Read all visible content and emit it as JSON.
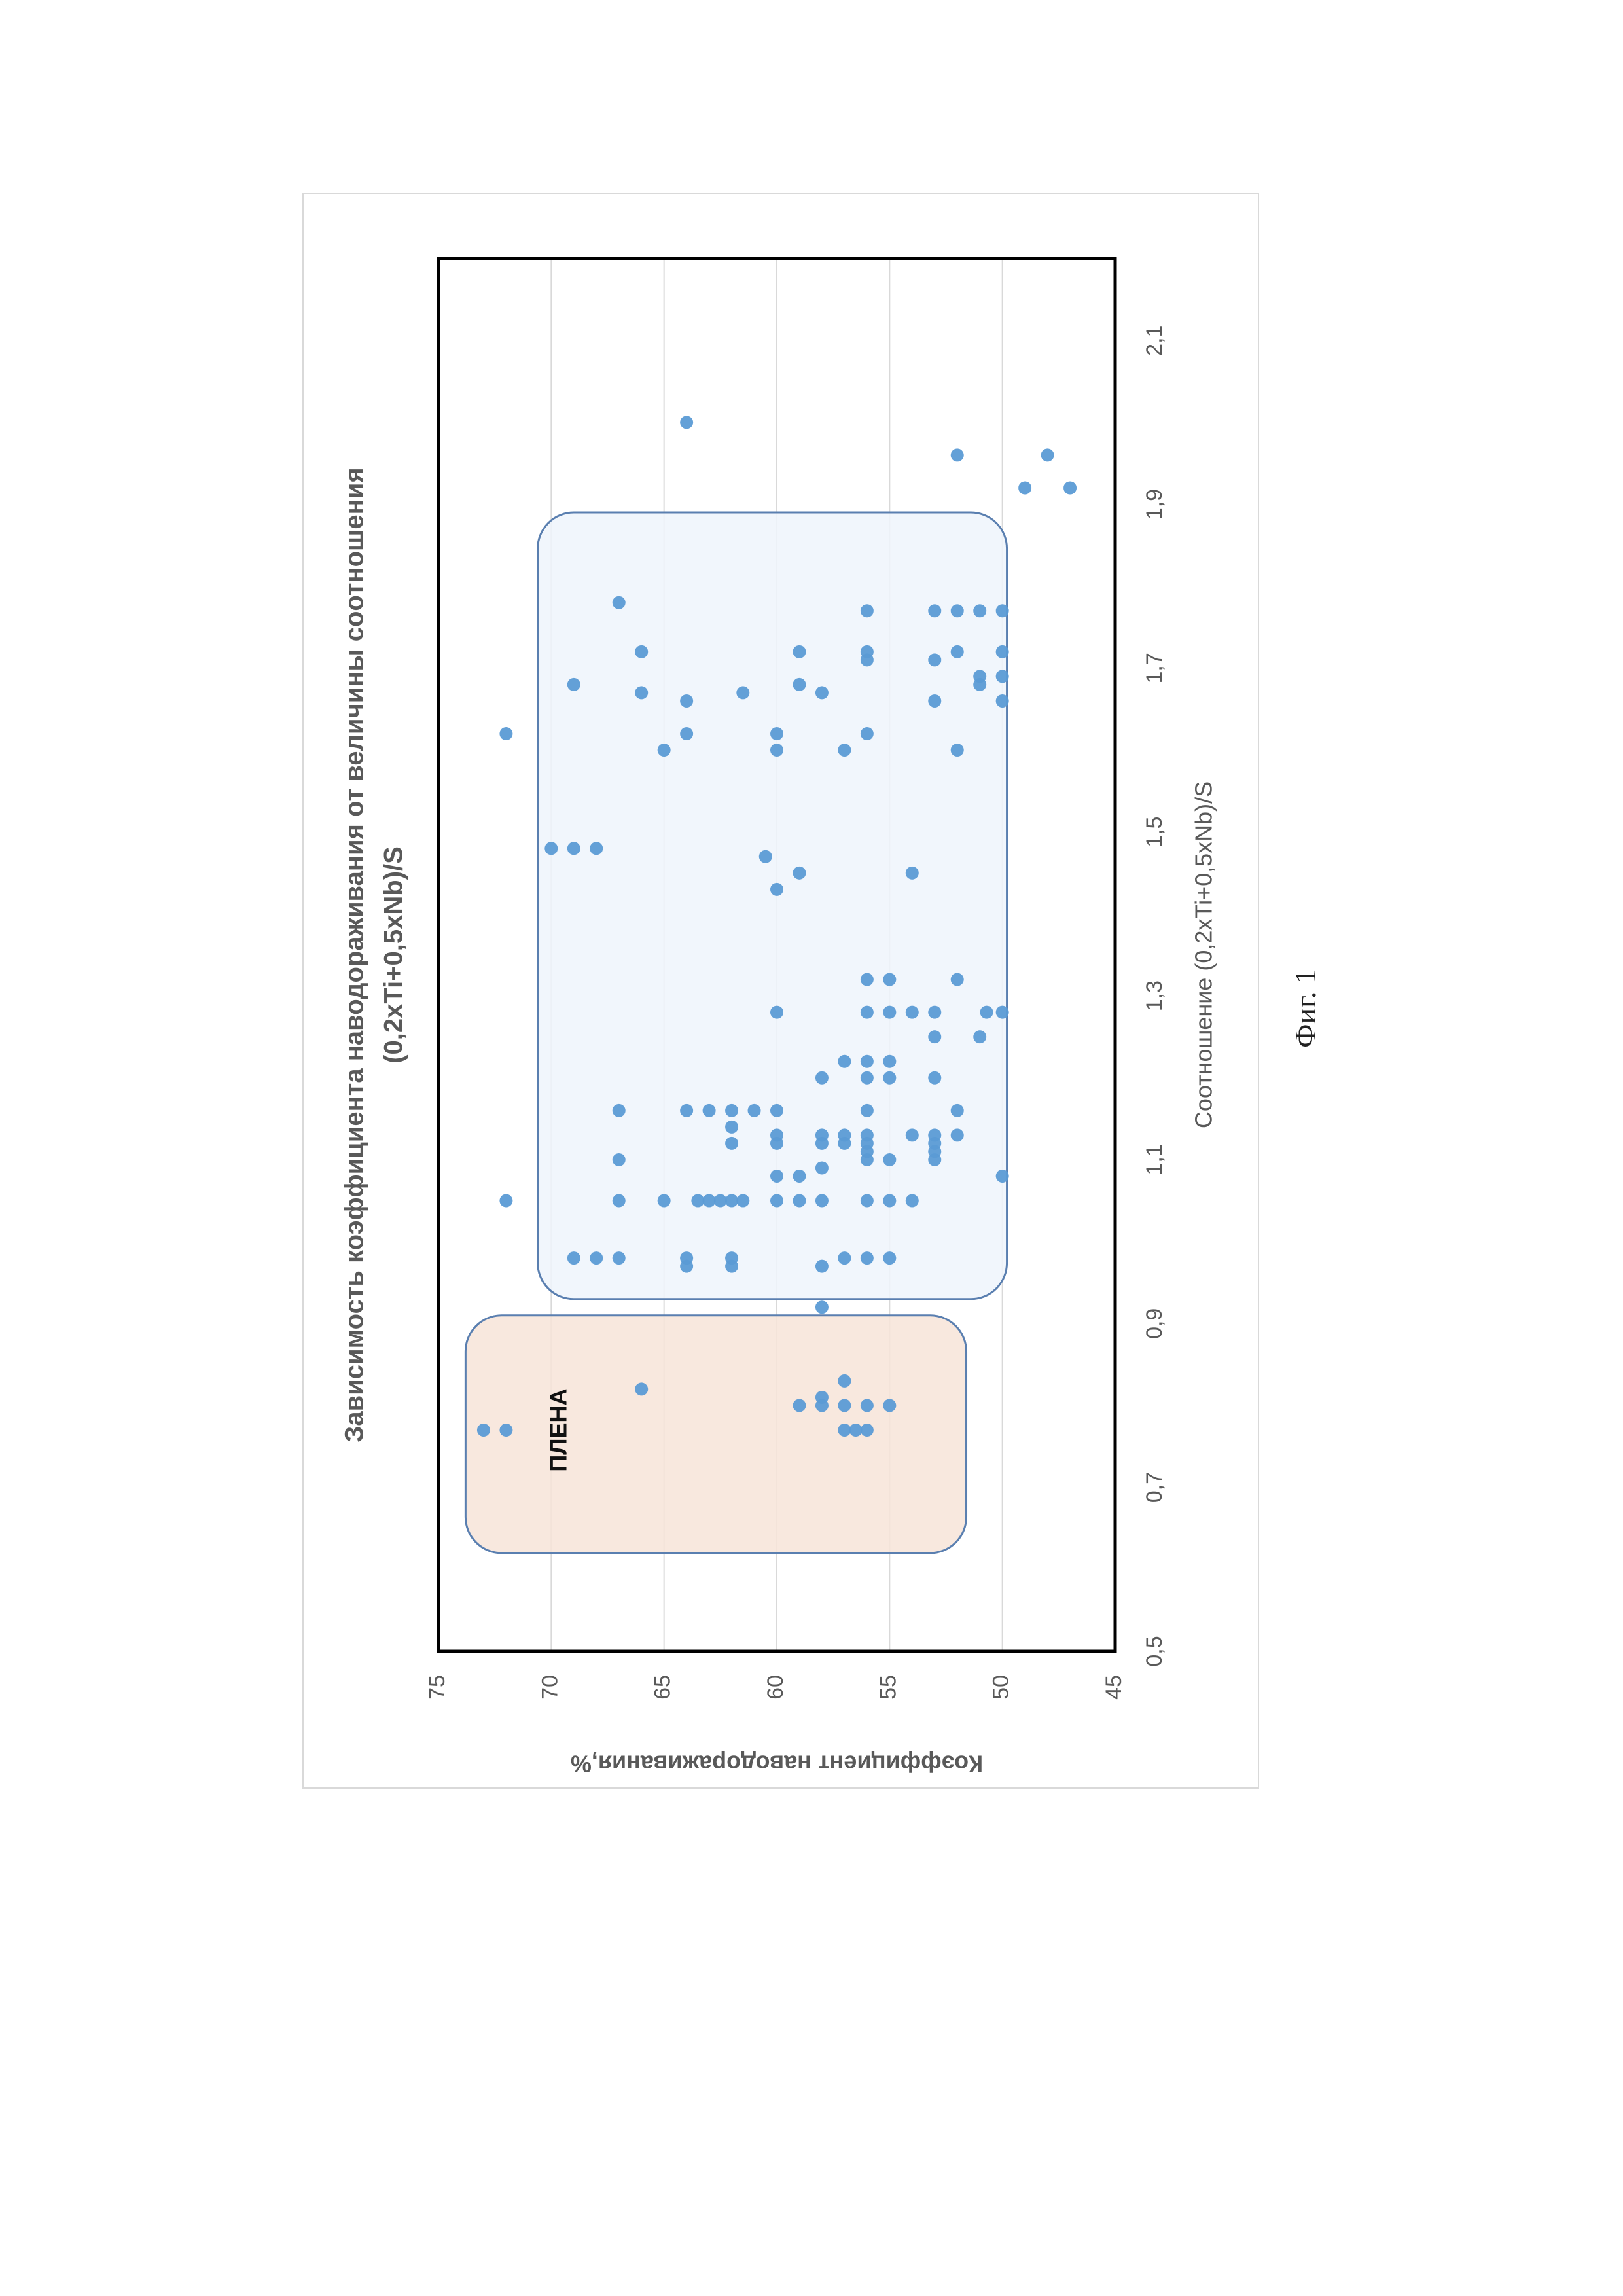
{
  "chart_data": {
    "type": "scatter",
    "title": [
      "Зависимость коэффициента наводораживания от величины соотношения",
      "(0,2xTi+0,5xNb)/S"
    ],
    "xlabel": "Соотношение (0,2xTi+0,5xNb)/S",
    "ylabel": "Коэффициент наводораживания,%",
    "xlim": [
      0.5,
      2.2
    ],
    "ylim": [
      45,
      75
    ],
    "x_ticks": [
      "0,5",
      "0,7",
      "0,9",
      "1,1",
      "1,3",
      "1,5",
      "1,7",
      "1,9",
      "2,1"
    ],
    "y_ticks": [
      "75",
      "70",
      "65",
      "60",
      "55",
      "50",
      "45"
    ],
    "grid": "horizontal",
    "orientation": "rotated 90° counter-clockwise on page",
    "marker_color": "#5b9bd5",
    "regions": [
      {
        "label": "ПЛЕНА",
        "x_range": [
          0.62,
          0.91
        ],
        "y_range": [
          51.6,
          73.8
        ],
        "fill": "#f7e4d8",
        "stroke": "#5a7fb0"
      },
      {
        "label": "",
        "x_range": [
          0.93,
          1.89
        ],
        "y_range": [
          49.8,
          70.6
        ],
        "fill": "#eef4fb",
        "stroke": "#5a7fb0"
      }
    ],
    "series": [
      {
        "points": [
          [
            0.77,
            73
          ],
          [
            0.77,
            72
          ],
          [
            0.82,
            66
          ],
          [
            0.8,
            59
          ],
          [
            0.8,
            58
          ],
          [
            0.81,
            58
          ],
          [
            0.8,
            57
          ],
          [
            0.8,
            56
          ],
          [
            0.8,
            55
          ],
          [
            0.83,
            57
          ],
          [
            0.77,
            57
          ],
          [
            0.77,
            56.5
          ],
          [
            0.77,
            56
          ],
          [
            1.05,
            72
          ],
          [
            1.62,
            72
          ],
          [
            1.48,
            70
          ],
          [
            1.48,
            69
          ],
          [
            1.48,
            68
          ],
          [
            1.68,
            69
          ],
          [
            0.98,
            69
          ],
          [
            0.98,
            68
          ],
          [
            0.98,
            67
          ],
          [
            1.05,
            67
          ],
          [
            1.1,
            67
          ],
          [
            1.16,
            67
          ],
          [
            1.78,
            67
          ],
          [
            1.67,
            66
          ],
          [
            1.72,
            66
          ],
          [
            1.05,
            65
          ],
          [
            1.6,
            65
          ],
          [
            0.97,
            64
          ],
          [
            0.98,
            64
          ],
          [
            1.16,
            64
          ],
          [
            1.62,
            64
          ],
          [
            1.66,
            64
          ],
          [
            2.0,
            64
          ],
          [
            1.16,
            63
          ],
          [
            1.05,
            63.5
          ],
          [
            1.05,
            63
          ],
          [
            1.05,
            62.5
          ],
          [
            1.05,
            62
          ],
          [
            1.05,
            61.5
          ],
          [
            0.97,
            62
          ],
          [
            0.98,
            62
          ],
          [
            1.14,
            62
          ],
          [
            1.12,
            62
          ],
          [
            1.16,
            62
          ],
          [
            1.16,
            61
          ],
          [
            1.47,
            60.5
          ],
          [
            1.67,
            61.5
          ],
          [
            1.05,
            60
          ],
          [
            1.08,
            60
          ],
          [
            1.12,
            60
          ],
          [
            1.13,
            60
          ],
          [
            1.16,
            60
          ],
          [
            1.28,
            60
          ],
          [
            1.43,
            60
          ],
          [
            1.6,
            60
          ],
          [
            1.62,
            60
          ],
          [
            1.05,
            59
          ],
          [
            1.08,
            59
          ],
          [
            1.45,
            59
          ],
          [
            1.68,
            59
          ],
          [
            1.72,
            59
          ],
          [
            0.92,
            58
          ],
          [
            0.97,
            58
          ],
          [
            1.05,
            58
          ],
          [
            1.09,
            58
          ],
          [
            1.12,
            58
          ],
          [
            1.13,
            58
          ],
          [
            1.2,
            58
          ],
          [
            1.67,
            58
          ],
          [
            0.98,
            57
          ],
          [
            1.12,
            57
          ],
          [
            1.13,
            57
          ],
          [
            1.22,
            57
          ],
          [
            1.6,
            57
          ],
          [
            0.98,
            56
          ],
          [
            1.05,
            56
          ],
          [
            1.1,
            56
          ],
          [
            1.11,
            56
          ],
          [
            1.12,
            56
          ],
          [
            1.13,
            56
          ],
          [
            1.16,
            56
          ],
          [
            1.2,
            56
          ],
          [
            1.22,
            56
          ],
          [
            1.28,
            56
          ],
          [
            1.32,
            56
          ],
          [
            1.62,
            56
          ],
          [
            1.71,
            56
          ],
          [
            1.72,
            56
          ],
          [
            1.77,
            56
          ],
          [
            0.98,
            55
          ],
          [
            1.05,
            55
          ],
          [
            1.1,
            55
          ],
          [
            1.2,
            55
          ],
          [
            1.22,
            55
          ],
          [
            1.28,
            55
          ],
          [
            1.32,
            55
          ],
          [
            1.05,
            54
          ],
          [
            1.13,
            54
          ],
          [
            1.28,
            54
          ],
          [
            1.45,
            54
          ],
          [
            1.1,
            53
          ],
          [
            1.11,
            53
          ],
          [
            1.12,
            53
          ],
          [
            1.13,
            53
          ],
          [
            1.2,
            53
          ],
          [
            1.25,
            53
          ],
          [
            1.28,
            53
          ],
          [
            1.66,
            53
          ],
          [
            1.71,
            53
          ],
          [
            1.77,
            53
          ],
          [
            1.13,
            52
          ],
          [
            1.16,
            52
          ],
          [
            1.32,
            52
          ],
          [
            1.6,
            52
          ],
          [
            1.72,
            52
          ],
          [
            1.77,
            52
          ],
          [
            1.96,
            52
          ],
          [
            1.25,
            51
          ],
          [
            1.28,
            50.7
          ],
          [
            1.68,
            51
          ],
          [
            1.69,
            51
          ],
          [
            1.77,
            51
          ],
          [
            1.08,
            50
          ],
          [
            1.28,
            50
          ],
          [
            1.66,
            50
          ],
          [
            1.69,
            50
          ],
          [
            1.72,
            50
          ],
          [
            1.77,
            50
          ],
          [
            1.92,
            49
          ],
          [
            1.96,
            48
          ],
          [
            1.92,
            47
          ]
        ]
      }
    ]
  },
  "caption": "Фиг. 1"
}
